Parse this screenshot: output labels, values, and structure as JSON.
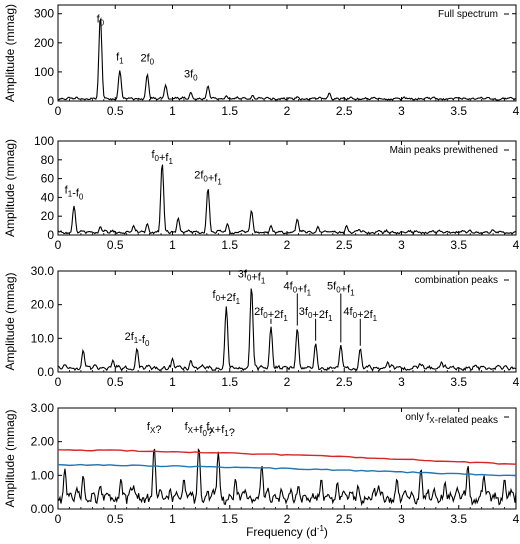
{
  "chart_data": [
    {
      "type": "line",
      "panel_label": "Full spectrum",
      "ylabel": "Amplitude (mmag)",
      "xlim": [
        0,
        4
      ],
      "ylim": [
        0,
        330
      ],
      "xticks": [
        "0",
        "0.5",
        "1",
        "1.5",
        "2",
        "2.5",
        "3",
        "3.5",
        "4"
      ],
      "yticks": [
        0,
        100,
        200,
        300
      ],
      "ytick_labels": [
        "0",
        "100",
        "200",
        "300"
      ],
      "noise_level": 8,
      "series": [
        {
          "color": "#000000",
          "peaks": [
            [
              0.37,
              295
            ],
            [
              0.54,
              105
            ],
            [
              0.78,
              92
            ],
            [
              0.94,
              55
            ],
            [
              1.16,
              30
            ],
            [
              1.31,
              52
            ],
            [
              1.47,
              18
            ],
            [
              1.7,
              20
            ],
            [
              2.09,
              15
            ],
            [
              2.37,
              28
            ],
            [
              2.48,
              10
            ]
          ]
        }
      ],
      "annotations": [
        {
          "text": "f0",
          "x": 0.37,
          "y": 270
        },
        {
          "text": "f1",
          "x": 0.54,
          "y": 140
        },
        {
          "text": "2f0",
          "x": 0.78,
          "y": 135
        },
        {
          "text": "3f0",
          "x": 1.16,
          "y": 80
        }
      ]
    },
    {
      "type": "line",
      "panel_label": "Main peaks prewithened",
      "ylabel": "Amplitude (mmag)",
      "xlim": [
        0,
        4
      ],
      "ylim": [
        0,
        100
      ],
      "xticks": [
        "0",
        "0.5",
        "1",
        "1.5",
        "2",
        "2.5",
        "3",
        "3.5",
        "4"
      ],
      "yticks": [
        0,
        20,
        40,
        60,
        80,
        100
      ],
      "ytick_labels": [
        "0",
        "20",
        "40",
        "60",
        "80",
        "100"
      ],
      "noise_level": 3,
      "series": [
        {
          "color": "#000000",
          "peaks": [
            [
              0.14,
              31
            ],
            [
              0.37,
              9
            ],
            [
              0.66,
              10
            ],
            [
              0.78,
              12
            ],
            [
              0.91,
              77
            ],
            [
              1.05,
              18
            ],
            [
              1.31,
              50
            ],
            [
              1.48,
              12
            ],
            [
              1.69,
              26
            ],
            [
              1.86,
              10
            ],
            [
              2.09,
              17
            ],
            [
              2.27,
              9
            ],
            [
              2.52,
              10
            ],
            [
              2.63,
              6
            ]
          ]
        }
      ],
      "annotations": [
        {
          "text": "f1-f0",
          "x": 0.14,
          "y": 44
        },
        {
          "text": "f0+f1",
          "x": 0.91,
          "y": 82
        },
        {
          "text": "2f0+f1",
          "x": 1.31,
          "y": 60
        }
      ]
    },
    {
      "type": "line",
      "panel_label": "combination peaks",
      "ylabel": "Amplitude (mmag)",
      "xlim": [
        0,
        4
      ],
      "ylim": [
        0,
        30
      ],
      "xticks": [
        "0",
        "0.5",
        "1",
        "1.5",
        "2",
        "2.5",
        "3",
        "3.5",
        "4"
      ],
      "yticks": [
        0,
        10,
        20,
        30
      ],
      "ytick_labels": [
        "0.0",
        "10.0",
        "20.0",
        "30.0"
      ],
      "noise_level": 1.2,
      "series": [
        {
          "color": "#000000",
          "peaks": [
            [
              0.22,
              6.5
            ],
            [
              0.48,
              3.5
            ],
            [
              0.69,
              7
            ],
            [
              1.0,
              4
            ],
            [
              1.16,
              3.5
            ],
            [
              1.47,
              19.5
            ],
            [
              1.69,
              25.5
            ],
            [
              1.86,
              13.5
            ],
            [
              2.09,
              13
            ],
            [
              2.25,
              8.5
            ],
            [
              2.47,
              8
            ],
            [
              2.64,
              7
            ],
            [
              2.88,
              3
            ],
            [
              3.16,
              2.5
            ],
            [
              3.35,
              3
            ]
          ]
        }
      ],
      "annotations": [
        {
          "text": "2f1-f0",
          "x": 0.69,
          "y": 9.5
        },
        {
          "text": "f0+2f1",
          "x": 1.47,
          "y": 22
        },
        {
          "text": "3f0+f1",
          "x": 1.69,
          "y": 28
        },
        {
          "text": "2f0+2f1",
          "x": 1.86,
          "y": 17
        },
        {
          "text": "4f0+f1",
          "x": 2.09,
          "y": 24.5
        },
        {
          "text": "3f0+2f1",
          "x": 2.25,
          "y": 17
        },
        {
          "text": "5f0+f1",
          "x": 2.47,
          "y": 24.5
        },
        {
          "text": "4f0+2f1",
          "x": 2.64,
          "y": 17
        }
      ]
    },
    {
      "type": "line",
      "panel_label": "only fX-related peaks",
      "ylabel": "Amplitude (mmag)",
      "xlabel": "Frequency (d-1)",
      "xlim": [
        0,
        4
      ],
      "ylim": [
        0,
        3
      ],
      "xticks": [
        "0",
        "0.5",
        "1",
        "1.5",
        "2",
        "2.5",
        "3",
        "3.5",
        "4"
      ],
      "yticks": [
        0,
        1,
        2,
        3
      ],
      "ytick_labels": [
        "0.00",
        "1.00",
        "2.00",
        "3.00"
      ],
      "noise_level": 0.35,
      "series": [
        {
          "color": "#000000",
          "peaks": [
            [
              0.06,
              1.2
            ],
            [
              0.22,
              1.0
            ],
            [
              0.37,
              0.7
            ],
            [
              0.55,
              0.9
            ],
            [
              0.66,
              0.7
            ],
            [
              0.84,
              1.85
            ],
            [
              0.98,
              0.6
            ],
            [
              1.1,
              0.9
            ],
            [
              1.23,
              1.85
            ],
            [
              1.4,
              1.7
            ],
            [
              1.55,
              0.9
            ],
            [
              1.78,
              1.3
            ],
            [
              1.95,
              0.6
            ],
            [
              2.1,
              0.7
            ],
            [
              2.3,
              0.9
            ],
            [
              2.44,
              0.8
            ],
            [
              2.62,
              0.7
            ],
            [
              2.8,
              0.7
            ],
            [
              2.96,
              0.9
            ],
            [
              3.17,
              1.2
            ],
            [
              3.38,
              0.8
            ],
            [
              3.58,
              1.3
            ],
            [
              3.72,
              1.0
            ],
            [
              3.9,
              0.9
            ]
          ]
        },
        {
          "name": "",
          "color": "#d62728",
          "x": [
            0,
            0.5,
            1,
            1.5,
            2,
            2.5,
            3,
            3.5,
            4
          ],
          "y": [
            1.75,
            1.74,
            1.7,
            1.66,
            1.61,
            1.55,
            1.48,
            1.4,
            1.33
          ]
        },
        {
          "name": "",
          "color": "#1f77b4",
          "x": [
            0,
            0.5,
            1,
            1.5,
            2,
            2.5,
            3,
            3.5,
            4
          ],
          "y": [
            1.31,
            1.3,
            1.27,
            1.24,
            1.2,
            1.15,
            1.1,
            1.04,
            0.99
          ]
        }
      ],
      "annotations": [
        {
          "text": "fX?",
          "x": 0.84,
          "y": 2.35
        },
        {
          "text": "fX+f0?",
          "x": 1.23,
          "y": 2.35
        },
        {
          "text": "fX+f1?",
          "x": 1.42,
          "y": 2.35
        }
      ]
    }
  ]
}
